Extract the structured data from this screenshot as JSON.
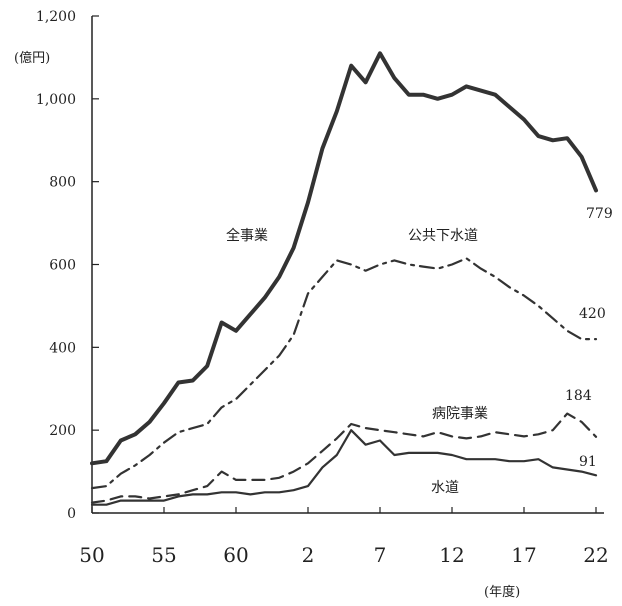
{
  "chart_data": {
    "type": "line",
    "title": "",
    "ylabel_unit": "(億円)",
    "xlabel_unit": "(年度)",
    "ylim": [
      0,
      1200
    ],
    "yticks": [
      0,
      200,
      400,
      600,
      800,
      1000,
      1200
    ],
    "ytick_labels": [
      "0",
      "200",
      "400",
      "600",
      "800",
      "1,000",
      "1,200"
    ],
    "xticks": [
      {
        "index": 0,
        "label": "50"
      },
      {
        "index": 5,
        "label": "55"
      },
      {
        "index": 10,
        "label": "60"
      },
      {
        "index": 15,
        "label": "2"
      },
      {
        "index": 20,
        "label": "7"
      },
      {
        "index": 25,
        "label": "12"
      },
      {
        "index": 30,
        "label": "17"
      },
      {
        "index": 35,
        "label": "22"
      }
    ],
    "x": [
      "50",
      "51",
      "52",
      "53",
      "54",
      "55",
      "56",
      "57",
      "58",
      "59",
      "60",
      "61",
      "62",
      "63",
      "1",
      "2",
      "3",
      "4",
      "5",
      "6",
      "7",
      "8",
      "9",
      "10",
      "11",
      "12",
      "13",
      "14",
      "15",
      "16",
      "17",
      "18",
      "19",
      "20",
      "21",
      "22"
    ],
    "series": [
      {
        "name": "全事業",
        "style": "solid-thick",
        "end_label": "779",
        "values": [
          120,
          125,
          175,
          190,
          220,
          265,
          315,
          320,
          355,
          460,
          440,
          480,
          520,
          570,
          640,
          750,
          880,
          970,
          1080,
          1040,
          1110,
          1050,
          1010,
          1010,
          1000,
          1010,
          1030,
          1020,
          1010,
          980,
          950,
          910,
          900,
          905,
          860,
          779
        ]
      },
      {
        "name": "公共下水道",
        "style": "dashdot",
        "end_label": "420",
        "values": [
          60,
          65,
          95,
          115,
          140,
          170,
          195,
          205,
          215,
          255,
          275,
          310,
          345,
          380,
          430,
          530,
          570,
          610,
          600,
          585,
          600,
          610,
          600,
          595,
          590,
          600,
          615,
          590,
          570,
          545,
          525,
          500,
          470,
          440,
          420,
          420
        ]
      },
      {
        "name": "病院事業",
        "style": "dashed",
        "end_label": "184",
        "values": [
          25,
          30,
          40,
          40,
          35,
          40,
          45,
          55,
          65,
          100,
          80,
          80,
          80,
          85,
          100,
          120,
          150,
          180,
          215,
          205,
          200,
          195,
          190,
          185,
          195,
          185,
          180,
          185,
          195,
          190,
          185,
          190,
          200,
          240,
          220,
          184
        ]
      },
      {
        "name": "水道",
        "style": "solid-thin",
        "end_label": "91",
        "values": [
          20,
          20,
          30,
          30,
          30,
          30,
          40,
          45,
          45,
          50,
          50,
          45,
          50,
          50,
          55,
          65,
          110,
          140,
          200,
          165,
          175,
          140,
          145,
          145,
          145,
          140,
          130,
          130,
          130,
          125,
          125,
          130,
          110,
          105,
          100,
          91
        ]
      }
    ]
  }
}
